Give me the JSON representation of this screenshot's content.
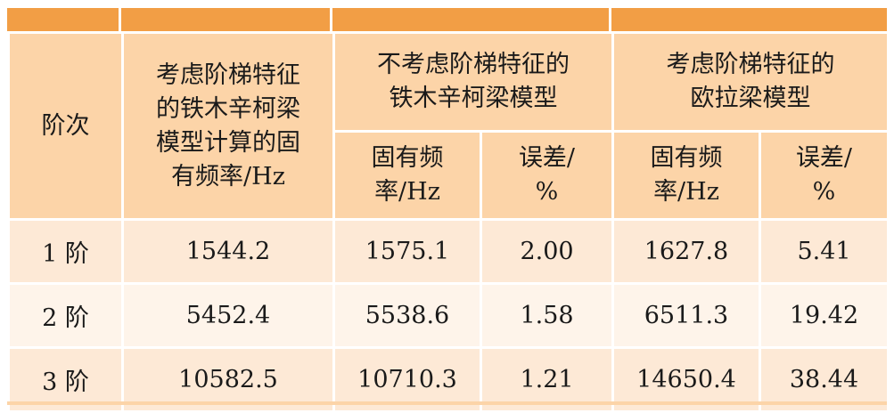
{
  "table": {
    "header": {
      "order": "阶次",
      "timoshenko_stepped": [
        "考虑阶梯特征",
        "的铁木辛柯梁",
        "模型计算的固",
        "有频率/Hz"
      ],
      "timoshenko_no_step": [
        "不考虑阶梯特征的",
        "铁木辛柯梁模型"
      ],
      "euler_stepped": [
        "考虑阶梯特征的",
        "欧拉梁模型"
      ],
      "freq_label": [
        "固有频",
        "率/Hz"
      ],
      "error_label": [
        "误差/",
        "%"
      ]
    },
    "rows": [
      {
        "order": "1 阶",
        "ts_freq": "1544.2",
        "tn_freq": "1575.1",
        "tn_err": "2.00",
        "eu_freq": "1627.8",
        "eu_err": "5.41"
      },
      {
        "order": "2 阶",
        "ts_freq": "5452.4",
        "tn_freq": "5538.6",
        "tn_err": "1.58",
        "eu_freq": "6511.3",
        "eu_err": "19.42"
      },
      {
        "order": "3 阶",
        "ts_freq": "10582.5",
        "tn_freq": "10710.3",
        "tn_err": "1.21",
        "eu_freq": "14650.4",
        "eu_err": "38.44"
      }
    ]
  }
}
